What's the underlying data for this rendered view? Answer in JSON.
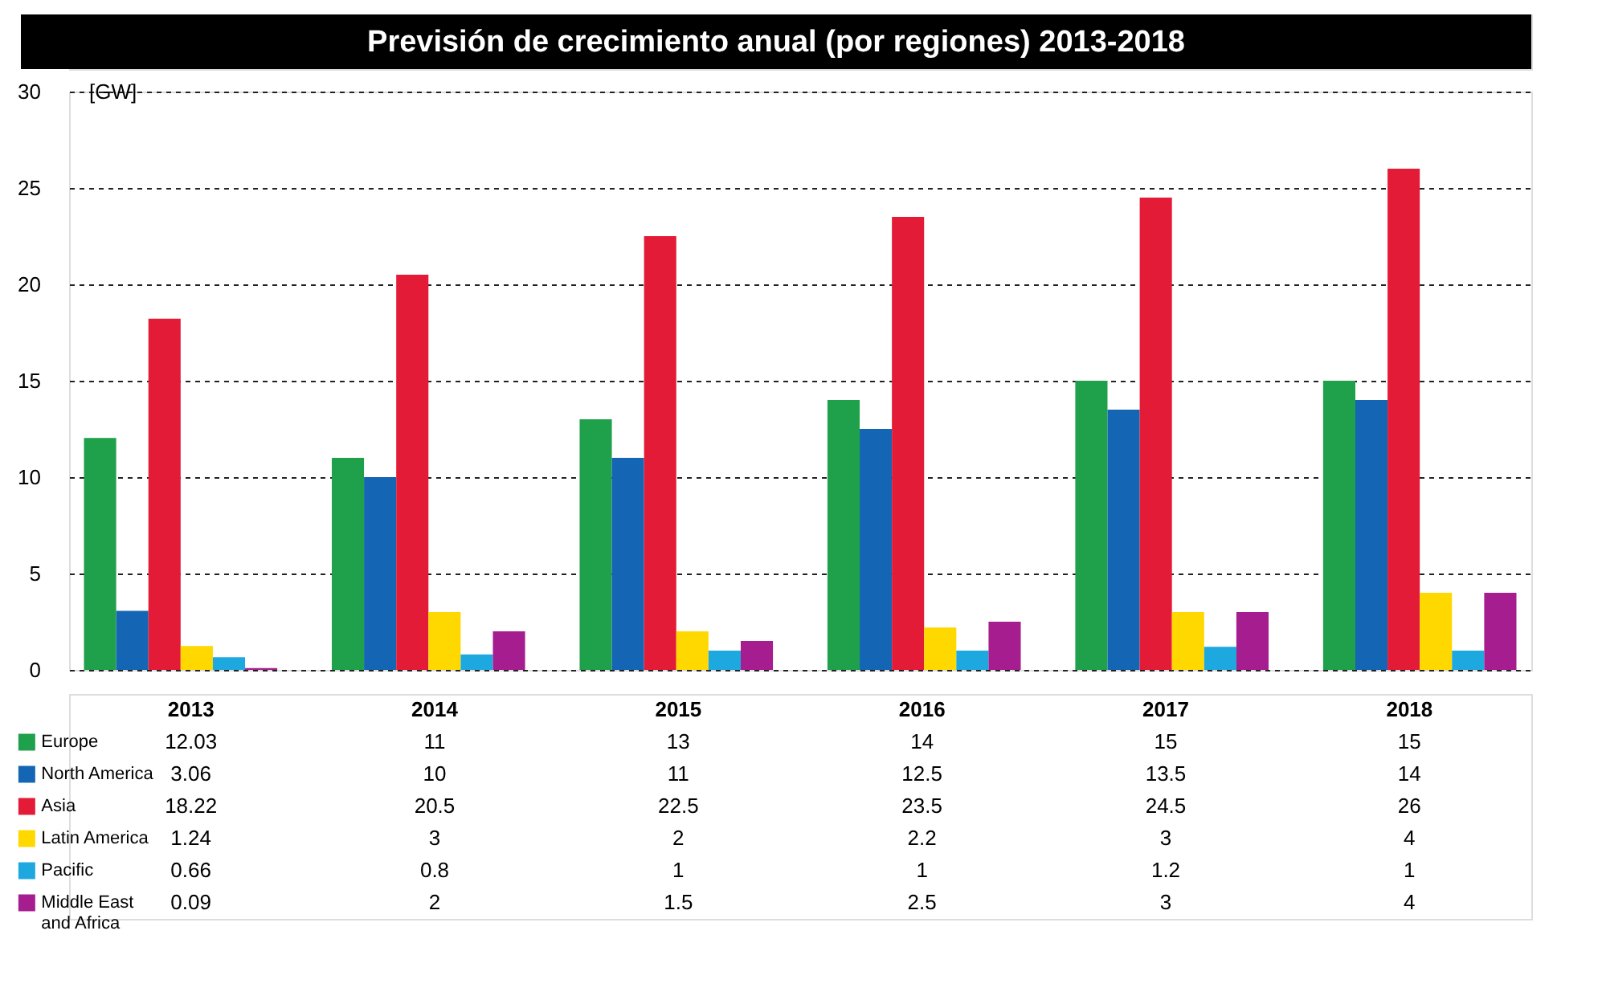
{
  "chart_data": {
    "type": "bar",
    "title": "Previsión de crecimiento anual (por regiones) 2013-2018",
    "ylabel": "[GW]",
    "categories": [
      "2013",
      "2014",
      "2015",
      "2016",
      "2017",
      "2018"
    ],
    "series": [
      {
        "name": "Europe",
        "color": "#1fa04a",
        "values": [
          12.03,
          11,
          13,
          14,
          15,
          15
        ]
      },
      {
        "name": "North America",
        "color": "#1565b5",
        "values": [
          3.06,
          10,
          11,
          12.5,
          13.5,
          14
        ]
      },
      {
        "name": "Asia",
        "color": "#e31b36",
        "values": [
          18.22,
          20.5,
          22.5,
          23.5,
          24.5,
          26
        ]
      },
      {
        "name": "Latin America",
        "color": "#ffd800",
        "values": [
          1.24,
          3,
          2,
          2.2,
          3,
          4
        ]
      },
      {
        "name": "Pacific",
        "color": "#1ea8e0",
        "values": [
          0.66,
          0.8,
          1,
          1,
          1.2,
          1
        ]
      },
      {
        "name": "Middle East and Africa",
        "color": "#a51d8f",
        "values": [
          0.09,
          2,
          1.5,
          2.5,
          3,
          4
        ]
      }
    ],
    "ylim": [
      0,
      30
    ],
    "yticks": [
      0,
      5,
      10,
      15,
      20,
      25,
      30
    ],
    "grid": "y",
    "data_labels": true,
    "legend": "bottom"
  }
}
